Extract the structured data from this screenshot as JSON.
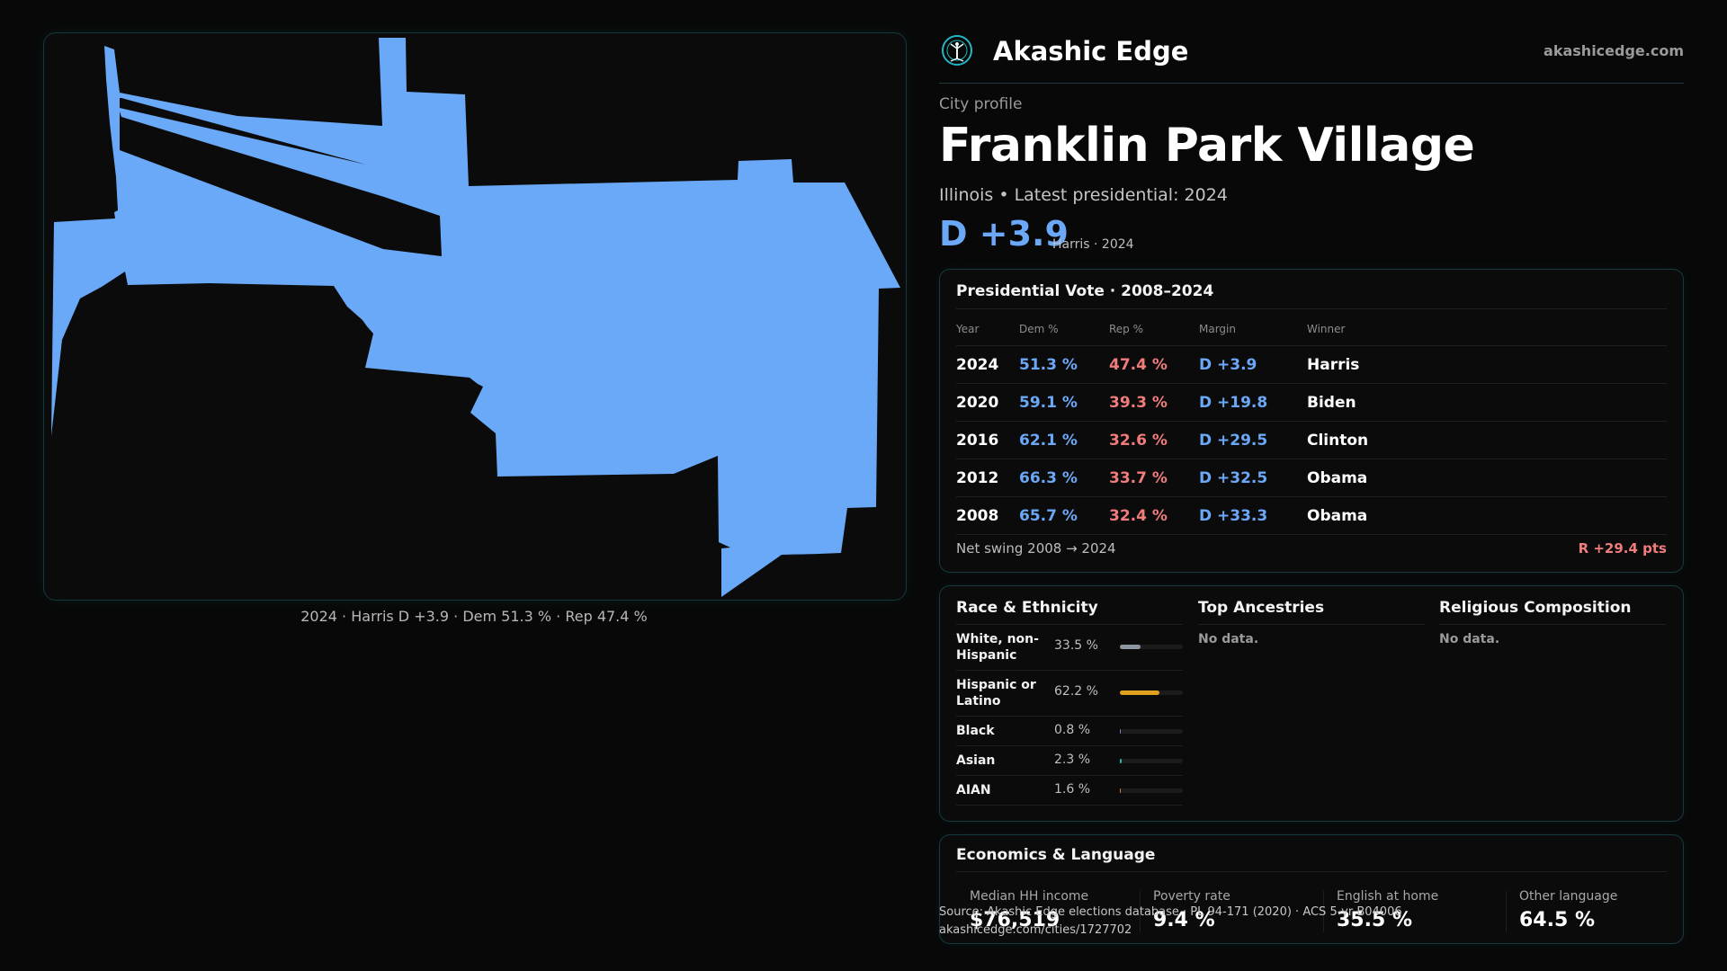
{
  "brand": {
    "name": "Akashic Edge",
    "url": "akashicedge.com",
    "logo_icon": "tree-of-life-icon",
    "accent": "#24b6c0"
  },
  "profile": {
    "eyebrow": "City profile",
    "city": "Franklin Park Village",
    "subline": "Illinois • Latest presidential: 2024",
    "margin": "D +3.9",
    "margin_note": "Harris · 2024"
  },
  "map": {
    "caption": "2024 · Harris D +3.9 · Dem 51.3 % · Rep 47.4 %",
    "fill_color": "#6aa9f7"
  },
  "vote": {
    "title": "Presidential Vote · 2008–2024",
    "headers": [
      "Year",
      "Dem %",
      "Rep %",
      "Margin",
      "Winner"
    ],
    "rows": [
      {
        "year": "2024",
        "dem": "51.3 %",
        "rep": "47.4 %",
        "margin": "D +3.9",
        "winner": "Harris"
      },
      {
        "year": "2020",
        "dem": "59.1 %",
        "rep": "39.3 %",
        "margin": "D +19.8",
        "winner": "Biden"
      },
      {
        "year": "2016",
        "dem": "62.1 %",
        "rep": "32.6 %",
        "margin": "D +29.5",
        "winner": "Clinton"
      },
      {
        "year": "2012",
        "dem": "66.3 %",
        "rep": "33.7 %",
        "margin": "D +32.5",
        "winner": "Obama"
      },
      {
        "year": "2008",
        "dem": "65.7 %",
        "rep": "32.4 %",
        "margin": "D +33.3",
        "winner": "Obama"
      }
    ],
    "swing_label": "Net swing 2008 → 2024",
    "swing_value": "R +29.4 pts",
    "dem_color": "#6ba8f7",
    "rep_color": "#f07c7c"
  },
  "race": {
    "title": "Race & Ethnicity",
    "rows": [
      {
        "name": "White, non-Hispanic",
        "pct": "33.5 %",
        "share": 0.335,
        "color": "#8f96a3"
      },
      {
        "name": "Hispanic or Latino",
        "pct": "62.2 %",
        "share": 0.622,
        "color": "#e0a020"
      },
      {
        "name": "Black",
        "pct": "0.8 %",
        "share": 0.008,
        "color": "#8a6cc8"
      },
      {
        "name": "Asian",
        "pct": "2.3 %",
        "share": 0.023,
        "color": "#2fb3a0"
      },
      {
        "name": "AIAN",
        "pct": "1.6 %",
        "share": 0.016,
        "color": "#c87a4a"
      }
    ]
  },
  "ancestries": {
    "title": "Top Ancestries",
    "empty": "No data."
  },
  "religion": {
    "title": "Religious Composition",
    "empty": "No data."
  },
  "econ": {
    "title": "Economics & Language",
    "stats": [
      {
        "label": "Median HH income",
        "value": "$76,519"
      },
      {
        "label": "Poverty rate",
        "value": "9.4 %"
      },
      {
        "label": "English at home",
        "value": "35.5 %"
      },
      {
        "label": "Other language",
        "value": "64.5 %"
      }
    ]
  },
  "source": {
    "line1": "Source: Akashic Edge elections database · PL 94-171 (2020) · ACS 5-yr B04006",
    "line2": "akashicedge.com/cities/1727702"
  }
}
